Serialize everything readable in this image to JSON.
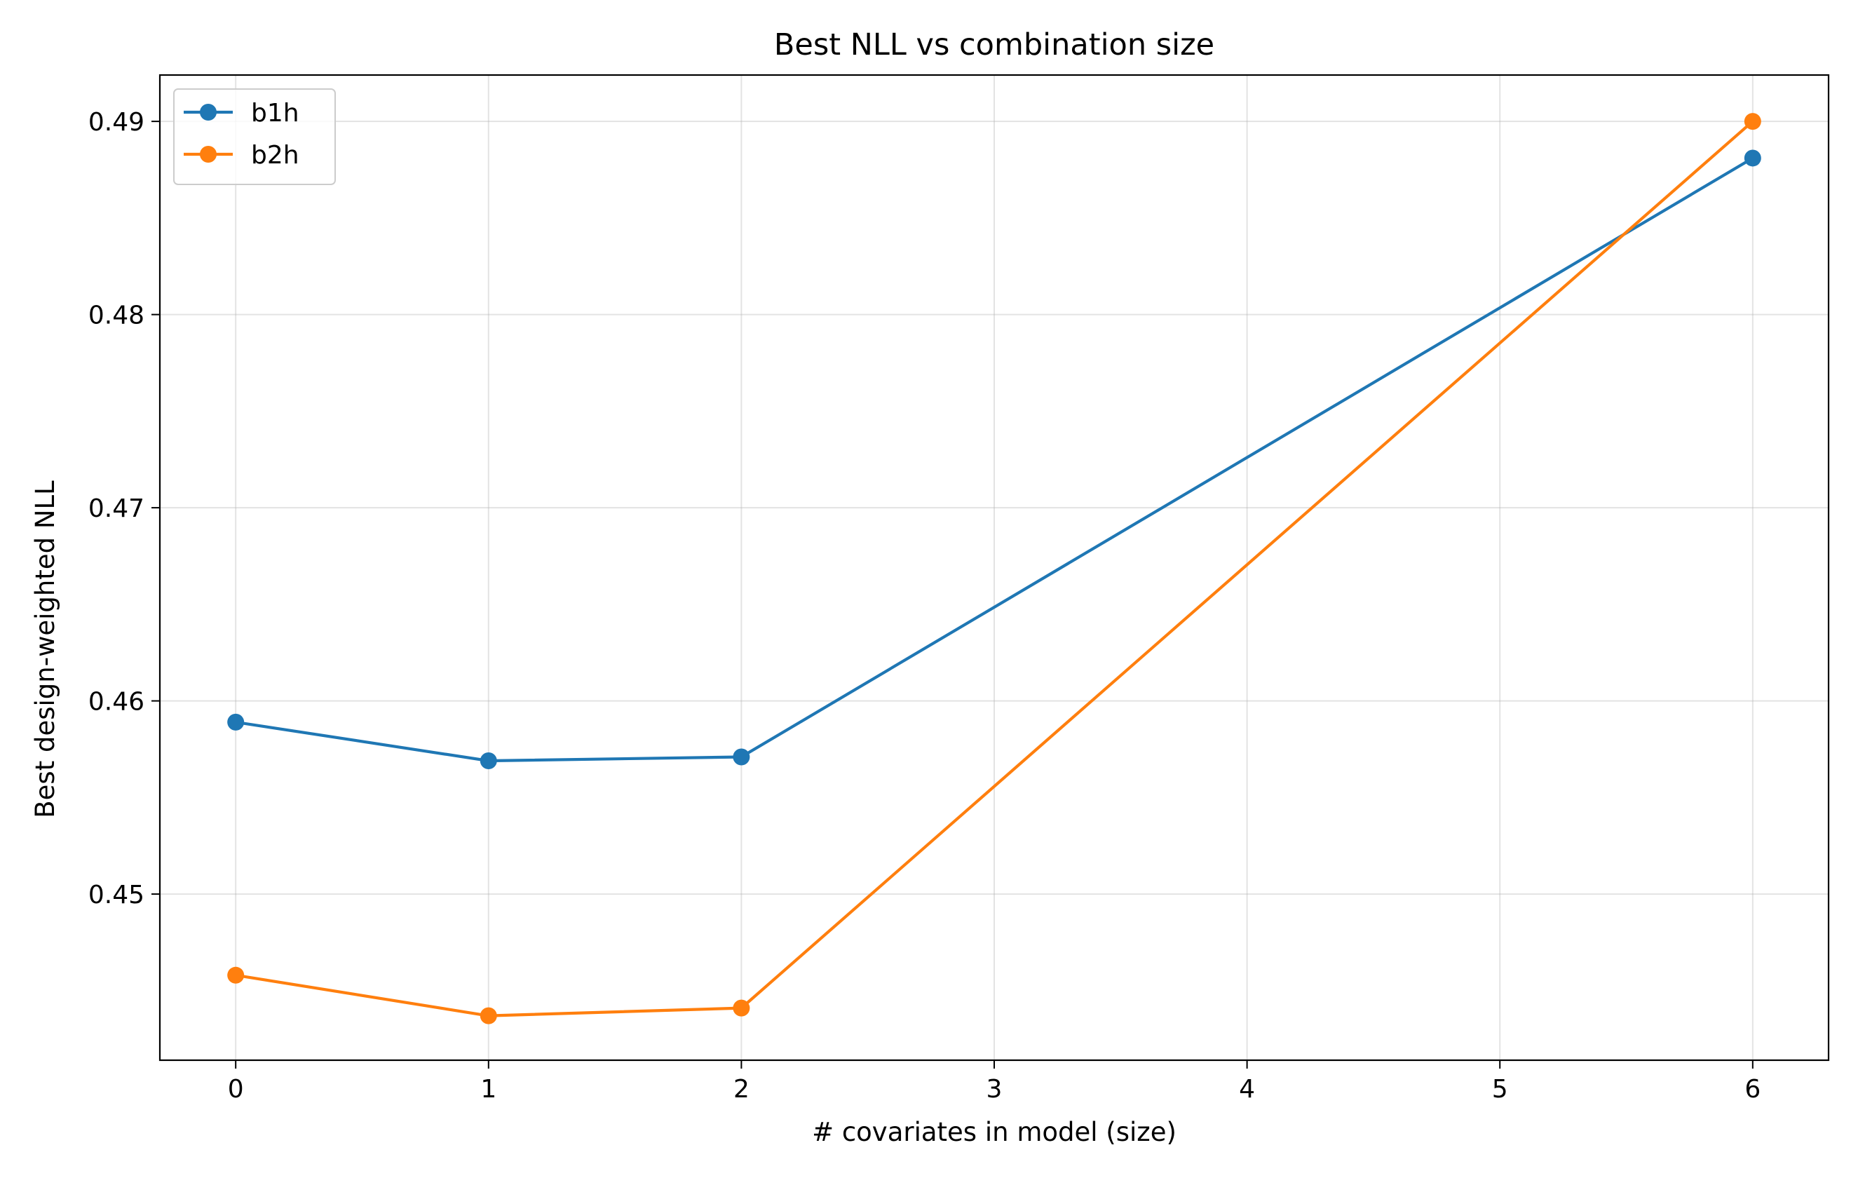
{
  "chart_data": {
    "type": "line",
    "title": "Best NLL vs combination size",
    "xlabel": "# covariates in model (size)",
    "ylabel": "Best design-weighted NLL",
    "xlim": [
      -0.3,
      6.3
    ],
    "ylim": [
      0.4414,
      0.4924
    ],
    "x_ticks": [
      0,
      1,
      2,
      3,
      4,
      5,
      6
    ],
    "y_ticks": [
      0.45,
      0.46,
      0.47,
      0.48,
      0.49
    ],
    "x_tick_labels": [
      "0",
      "1",
      "2",
      "3",
      "4",
      "5",
      "6"
    ],
    "y_tick_labels": [
      "0.45",
      "0.46",
      "0.47",
      "0.48",
      "0.49"
    ],
    "grid": true,
    "legend_position": "top-left",
    "series": [
      {
        "name": "b1h",
        "color": "#1f77b4",
        "x": [
          0,
          1,
          2,
          6
        ],
        "y": [
          0.4589,
          0.4569,
          0.4571,
          0.4881
        ]
      },
      {
        "name": "b2h",
        "color": "#ff7f0e",
        "x": [
          0,
          1,
          2,
          6
        ],
        "y": [
          0.4458,
          0.4437,
          0.4441,
          0.49
        ]
      }
    ]
  }
}
